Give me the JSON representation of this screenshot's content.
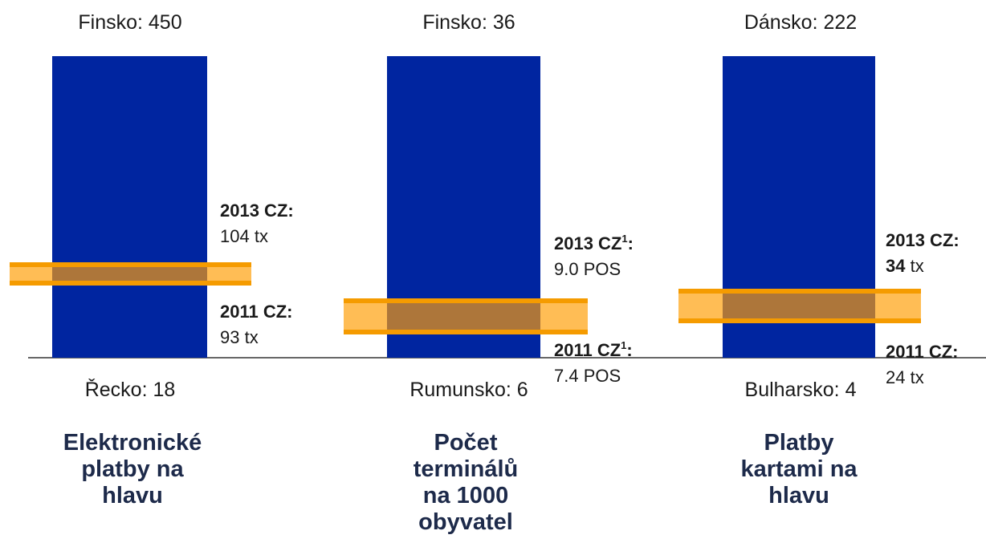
{
  "panels": [
    {
      "top": "Finsko: 450",
      "bottom": "Řecko: 18",
      "upper": {
        "heading": "2013 CZ",
        "sup": "",
        "colon": ":",
        "value": "104",
        "unit": "tx"
      },
      "lower": {
        "heading": "2011 CZ",
        "sup": "",
        "colon": ":",
        "value": "93",
        "unit": "tx"
      },
      "title": [
        "Elektronické",
        "platby na",
        "hlavu"
      ]
    },
    {
      "top": "Finsko: 36",
      "bottom": "Rumunsko: 6",
      "upper": {
        "heading": "2013 CZ",
        "sup": "1",
        "colon": ":",
        "value": "9.0",
        "unit": "POS"
      },
      "lower": {
        "heading": "2011 CZ",
        "sup": "1",
        "colon": ":",
        "value": "7.4",
        "unit": "POS"
      },
      "title": [
        "Počet",
        "terminálů",
        "na 1000",
        "obyvatel"
      ]
    },
    {
      "top": "Dánsko: 222",
      "bottom": "Bulharsko: 4",
      "upper": {
        "heading": "2013 CZ",
        "sup": "",
        "colon": ":",
        "value": "34",
        "value_bold": true,
        "unit": "tx"
      },
      "lower": {
        "heading": "2011 CZ",
        "sup": "",
        "colon": ":",
        "value": "24",
        "unit": "tx"
      },
      "title": [
        "Platby",
        "kartami na",
        "hlavu"
      ]
    }
  ]
}
